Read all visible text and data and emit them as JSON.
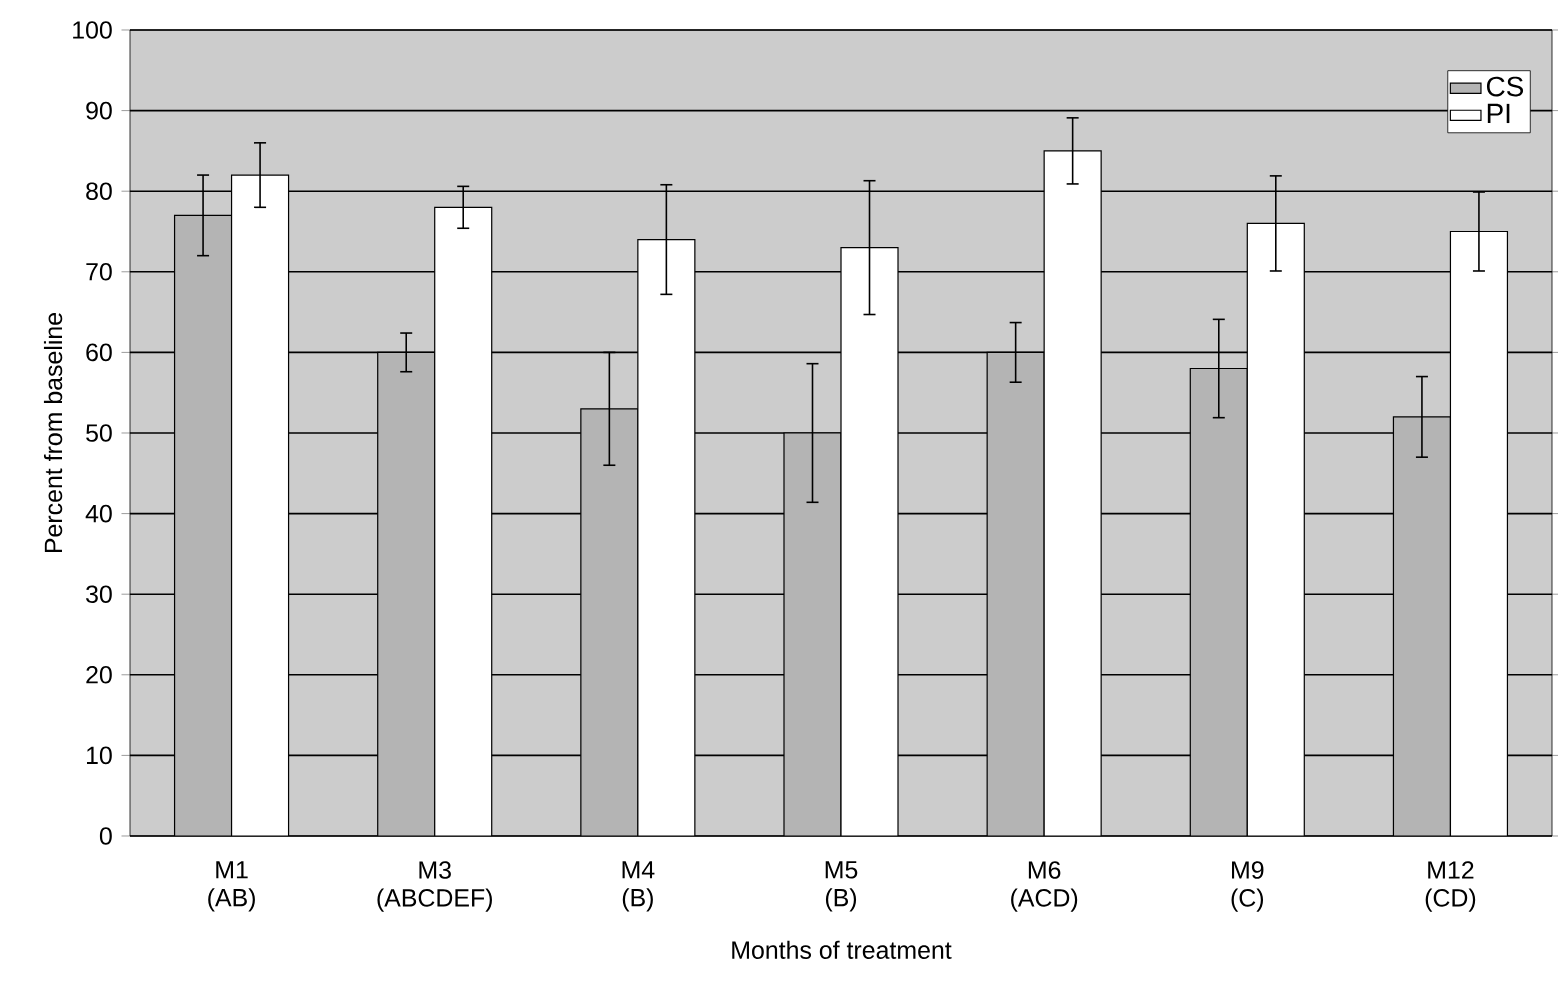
{
  "chart_data": {
    "type": "bar",
    "xlabel": "Months of treatment",
    "ylabel": "Percent from baseline",
    "categories": [
      "M1 (AB)",
      "M3 (ABCDEF)",
      "M4 (B)",
      "M5 (B)",
      "M6 (ACD)",
      "M9 (C)",
      "M12 (CD)"
    ],
    "series": [
      {
        "name": "CS",
        "color": "#b4b4b4",
        "values": [
          77,
          60,
          53,
          50,
          60,
          58,
          52
        ],
        "errors": [
          5,
          2.4,
          7,
          8.6,
          3.7,
          6.1,
          5
        ]
      },
      {
        "name": "PI",
        "color": "#ffffff",
        "values": [
          82,
          78,
          74,
          73,
          85,
          76,
          75
        ],
        "errors": [
          4,
          2.6,
          6.8,
          8.3,
          4.1,
          5.9,
          4.9
        ]
      }
    ],
    "ylim": [
      0,
      100
    ],
    "yticks": [
      0,
      10,
      20,
      30,
      40,
      50,
      60,
      70,
      80,
      90,
      100
    ],
    "grid": "y",
    "legend": "top right"
  }
}
